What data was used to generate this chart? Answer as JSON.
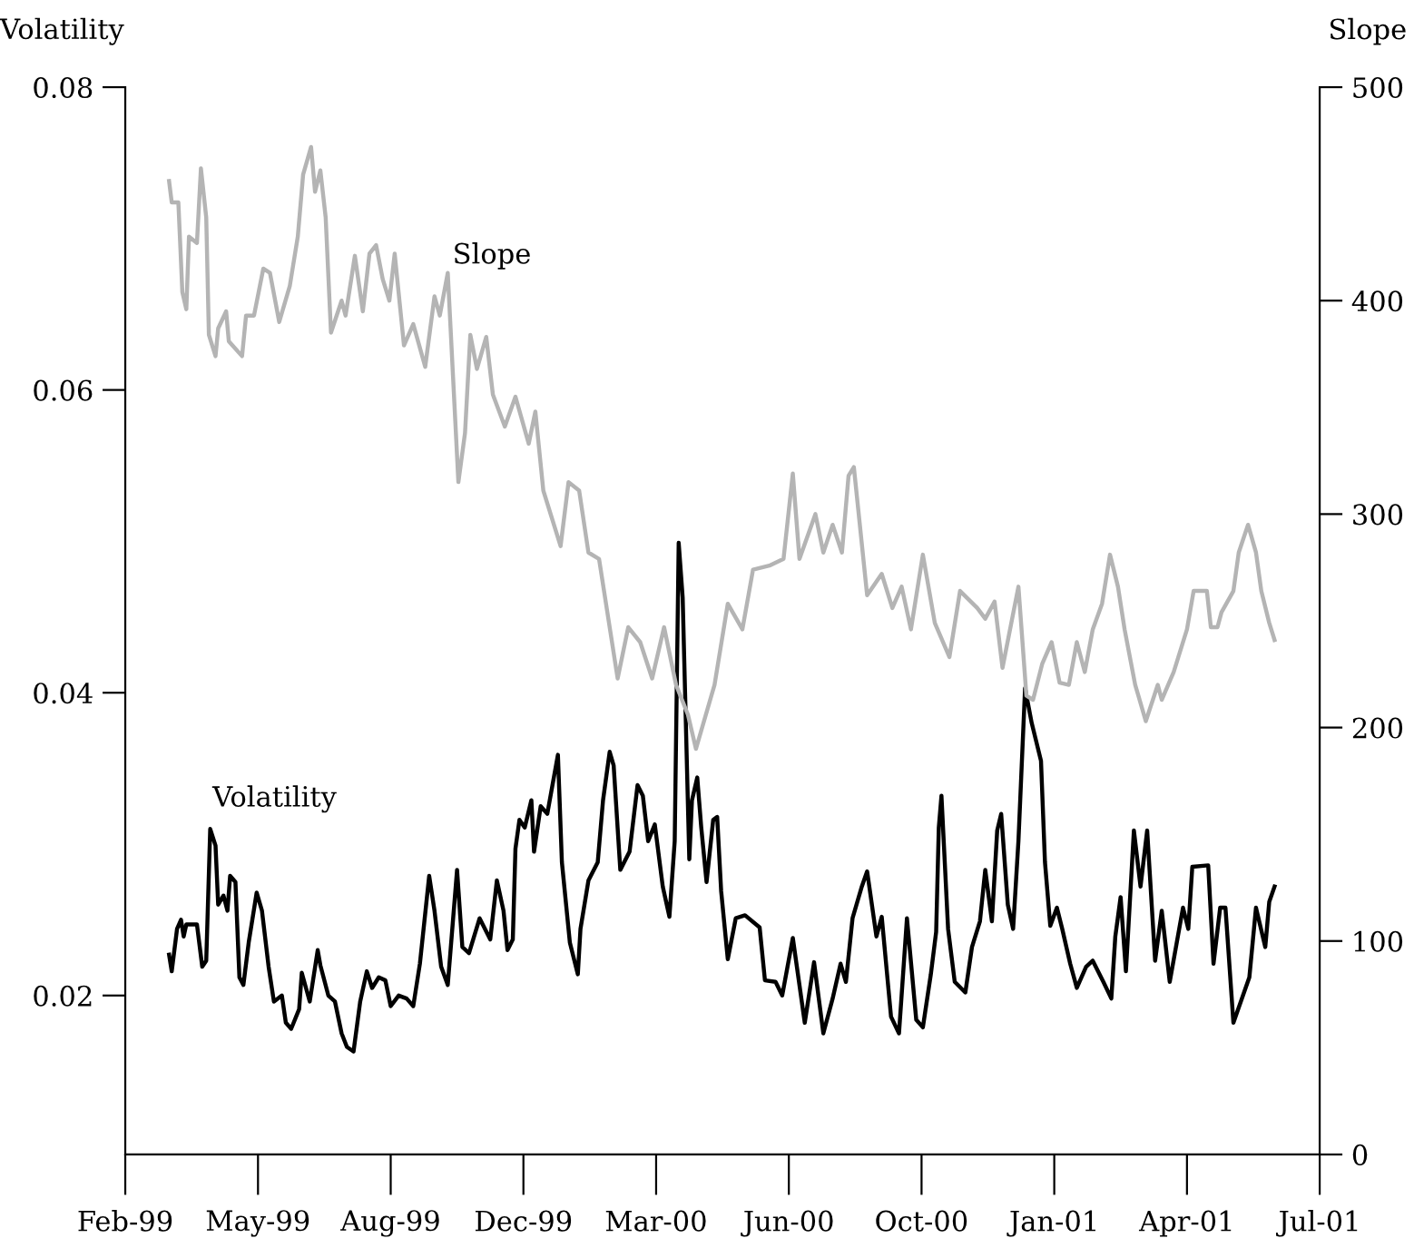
{
  "chart_data": {
    "type": "line",
    "ylabel": "Volatility",
    "y2label": "Slope",
    "xlim": [
      "1999-02-10",
      "2001-07-29"
    ],
    "xticks": [
      {
        "value": "1999-02-10",
        "label": "Feb-99"
      },
      {
        "value": "1999-05-21",
        "label": "May-99"
      },
      {
        "value": "1999-08-29",
        "label": "Aug-99"
      },
      {
        "value": "1999-12-07",
        "label": "Dec-99"
      },
      {
        "value": "2000-03-16",
        "label": "Mar-00"
      },
      {
        "value": "2000-06-24",
        "label": "Jun-00"
      },
      {
        "value": "2000-10-02",
        "label": "Oct-00"
      },
      {
        "value": "2001-01-10",
        "label": "Jan-01"
      },
      {
        "value": "2001-04-20",
        "label": "Apr-01"
      },
      {
        "value": "2001-07-29",
        "label": "Jul-01"
      }
    ],
    "ylim": [
      0.0095,
      0.08
    ],
    "yticks": [
      0.02,
      0.04,
      0.06,
      0.08
    ],
    "y2lim": [
      0,
      500
    ],
    "y2ticks": [
      0,
      100,
      200,
      300,
      400,
      500
    ],
    "legend": false,
    "grid": false,
    "series": [
      {
        "name": "Volatility",
        "color": "#000000",
        "axis": "y",
        "x": [
          "1999-03-15",
          "1999-03-17",
          "1999-03-21",
          "1999-03-24",
          "1999-03-26",
          "1999-03-28",
          "1999-04-05",
          "1999-04-09",
          "1999-04-12",
          "1999-04-15",
          "1999-04-19",
          "1999-04-21",
          "1999-04-25",
          "1999-04-28",
          "1999-04-30",
          "1999-05-04",
          "1999-05-07",
          "1999-05-10",
          "1999-05-14",
          "1999-05-20",
          "1999-05-24",
          "1999-05-29",
          "1999-06-02",
          "1999-06-08",
          "1999-06-11",
          "1999-06-15",
          "1999-06-21",
          "1999-06-23",
          "1999-06-29",
          "1999-07-05",
          "1999-07-07",
          "1999-07-13",
          "1999-07-18",
          "1999-07-23",
          "1999-07-27",
          "1999-08-01",
          "1999-08-06",
          "1999-08-11",
          "1999-08-15",
          "1999-08-20",
          "1999-08-25",
          "1999-08-29",
          "1999-09-04",
          "1999-09-10",
          "1999-09-15",
          "1999-09-20",
          "1999-09-27",
          "1999-10-01",
          "1999-10-06",
          "1999-10-11",
          "1999-10-18",
          "1999-10-22",
          "1999-10-27",
          "1999-11-04",
          "1999-11-12",
          "1999-11-17",
          "1999-11-22",
          "1999-11-25",
          "1999-11-29",
          "1999-12-01",
          "1999-12-04",
          "1999-12-08",
          "1999-12-13",
          "1999-12-15",
          "1999-12-20",
          "1999-12-25",
          "2000-01-02",
          "2000-01-05",
          "2000-01-11",
          "2000-01-17",
          "2000-01-19",
          "2000-01-25",
          "2000-02-01",
          "2000-02-05",
          "2000-02-10",
          "2000-02-13",
          "2000-02-18",
          "2000-02-25",
          "2000-03-02",
          "2000-03-06",
          "2000-03-10",
          "2000-03-15",
          "2000-03-21",
          "2000-03-26",
          "2000-03-30",
          "2000-04-02",
          "2000-04-05",
          "2000-04-10",
          "2000-04-12",
          "2000-04-16",
          "2000-04-19",
          "2000-04-23",
          "2000-04-28",
          "2000-05-01",
          "2000-05-04",
          "2000-05-09",
          "2000-05-15",
          "2000-05-22",
          "2000-06-02",
          "2000-06-06",
          "2000-06-14",
          "2000-06-19",
          "2000-06-27",
          "2000-07-06",
          "2000-07-13",
          "2000-07-20",
          "2000-07-27",
          "2000-08-02",
          "2000-08-06",
          "2000-08-11",
          "2000-08-18",
          "2000-08-22",
          "2000-08-29",
          "2000-09-02",
          "2000-09-09",
          "2000-09-15",
          "2000-09-21",
          "2000-09-28",
          "2000-10-03",
          "2000-10-09",
          "2000-10-13",
          "2000-10-15",
          "2000-10-17",
          "2000-10-22",
          "2000-10-27",
          "2000-11-04",
          "2000-11-09",
          "2000-11-15",
          "2000-11-19",
          "2000-11-24",
          "2000-11-28",
          "2000-12-01",
          "2000-12-06",
          "2000-12-10",
          "2000-12-14",
          "2000-12-19",
          "2000-12-24",
          "2000-12-31",
          "2001-01-03",
          "2001-01-07",
          "2001-01-12",
          "2001-01-16",
          "2001-01-22",
          "2001-01-27",
          "2001-02-03",
          "2001-02-08",
          "2001-02-16",
          "2001-02-22",
          "2001-02-25",
          "2001-03-01",
          "2001-03-05",
          "2001-03-11",
          "2001-03-16",
          "2001-03-21",
          "2001-03-27",
          "2001-04-01",
          "2001-04-07",
          "2001-04-17",
          "2001-04-21",
          "2001-04-24",
          "2001-05-06",
          "2001-05-10",
          "2001-05-15",
          "2001-05-19",
          "2001-05-25",
          "2001-06-06",
          "2001-06-11",
          "2001-06-18",
          "2001-06-21",
          "2001-06-25"
        ],
        "values": [
          0.0227,
          0.0216,
          0.0244,
          0.025,
          0.0239,
          0.0247,
          0.0247,
          0.0219,
          0.0223,
          0.031,
          0.0299,
          0.026,
          0.0266,
          0.0256,
          0.0279,
          0.0275,
          0.0212,
          0.0207,
          0.0235,
          0.0268,
          0.0256,
          0.0219,
          0.0196,
          0.02,
          0.0182,
          0.0178,
          0.0191,
          0.0215,
          0.0196,
          0.023,
          0.022,
          0.02,
          0.0196,
          0.0175,
          0.0166,
          0.0163,
          0.0196,
          0.0216,
          0.0205,
          0.0212,
          0.021,
          0.0193,
          0.02,
          0.0198,
          0.0193,
          0.0221,
          0.0279,
          0.0256,
          0.0219,
          0.0207,
          0.0283,
          0.0232,
          0.0228,
          0.0251,
          0.0237,
          0.0276,
          0.0256,
          0.023,
          0.0237,
          0.0297,
          0.0316,
          0.0311,
          0.0329,
          0.0295,
          0.0325,
          0.032,
          0.0359,
          0.0288,
          0.0235,
          0.0214,
          0.0244,
          0.0276,
          0.0288,
          0.0329,
          0.0361,
          0.0352,
          0.0283,
          0.0295,
          0.0339,
          0.0332,
          0.0302,
          0.0313,
          0.0272,
          0.0252,
          0.0302,
          0.0499,
          0.0463,
          0.029,
          0.0329,
          0.0344,
          0.0311,
          0.0275,
          0.0316,
          0.0318,
          0.0269,
          0.0224,
          0.0251,
          0.0253,
          0.0245,
          0.021,
          0.0209,
          0.02,
          0.0238,
          0.0182,
          0.0222,
          0.0175,
          0.0198,
          0.0221,
          0.0209,
          0.0251,
          0.0272,
          0.0282,
          0.0239,
          0.0252,
          0.0186,
          0.0175,
          0.0251,
          0.0184,
          0.0179,
          0.0214,
          0.0242,
          0.0311,
          0.0332,
          0.0244,
          0.0209,
          0.0202,
          0.0232,
          0.0249,
          0.0283,
          0.0249,
          0.0309,
          0.032,
          0.026,
          0.0244,
          0.0302,
          0.0403,
          0.038,
          0.0355,
          0.0288,
          0.0246,
          0.0258,
          0.0244,
          0.0221,
          0.0205,
          0.0219,
          0.0223,
          0.0209,
          0.0198,
          0.0239,
          0.0265,
          0.0216,
          0.0309,
          0.0272,
          0.0309,
          0.0223,
          0.0256,
          0.0209,
          0.0258,
          0.0244,
          0.0285,
          0.0286,
          0.0221,
          0.0258,
          0.0258,
          0.0182,
          0.0212,
          0.0258,
          0.0232,
          0.0262,
          0.0272
        ]
      },
      {
        "name": "Slope",
        "color": "#b4b4b4",
        "axis": "y2",
        "x": [
          "1999-03-15",
          "1999-03-17",
          "1999-03-22",
          "1999-03-25",
          "1999-03-28",
          "1999-03-30",
          "1999-04-05",
          "1999-04-08",
          "1999-04-12",
          "1999-04-14",
          "1999-04-19",
          "1999-04-21",
          "1999-04-27",
          "1999-04-29",
          "1999-05-09",
          "1999-05-12",
          "1999-05-18",
          "1999-05-25",
          "1999-05-30",
          "1999-06-06",
          "1999-06-14",
          "1999-06-20",
          "1999-06-24",
          "1999-06-30",
          "1999-07-03",
          "1999-07-07",
          "1999-07-11",
          "1999-07-15",
          "1999-07-23",
          "1999-07-26",
          "1999-08-02",
          "1999-08-08",
          "1999-08-13",
          "1999-08-18",
          "1999-08-23",
          "1999-08-28",
          "1999-09-01",
          "1999-09-08",
          "1999-09-15",
          "1999-09-24",
          "1999-10-01",
          "1999-10-05",
          "1999-10-11",
          "1999-10-15",
          "1999-10-19",
          "1999-10-24",
          "1999-10-28",
          "1999-11-02",
          "1999-11-09",
          "1999-11-14",
          "1999-11-23",
          "1999-12-01",
          "1999-12-11",
          "1999-12-16",
          "1999-12-22",
          "2000-01-04",
          "2000-01-10",
          "2000-01-18",
          "2000-01-25",
          "2000-02-02",
          "2000-02-16",
          "2000-02-24",
          "2000-03-04",
          "2000-03-13",
          "2000-03-22",
          "2000-03-31",
          "2000-04-09",
          "2000-04-15",
          "2000-04-29",
          "2000-05-09",
          "2000-05-20",
          "2000-05-28",
          "2000-06-10",
          "2000-06-20",
          "2000-06-27",
          "2000-07-02",
          "2000-07-14",
          "2000-07-20",
          "2000-07-27",
          "2000-08-03",
          "2000-08-08",
          "2000-08-12",
          "2000-08-22",
          "2000-09-02",
          "2000-09-10",
          "2000-09-17",
          "2000-09-24",
          "2000-10-03",
          "2000-10-12",
          "2000-10-23",
          "2000-10-31",
          "2000-11-13",
          "2000-11-19",
          "2000-11-26",
          "2000-12-02",
          "2000-12-14",
          "2000-12-20",
          "2000-12-25",
          "2001-01-01",
          "2001-01-08",
          "2001-01-14",
          "2001-01-21",
          "2001-01-27",
          "2001-02-02",
          "2001-02-08",
          "2001-02-15",
          "2001-02-21",
          "2001-02-27",
          "2001-03-04",
          "2001-03-12",
          "2001-03-20",
          "2001-03-29",
          "2001-04-01",
          "2001-04-10",
          "2001-04-20",
          "2001-04-25",
          "2001-05-05",
          "2001-05-08",
          "2001-05-13",
          "2001-05-16",
          "2001-05-25",
          "2001-05-29",
          "2001-06-05",
          "2001-06-11",
          "2001-06-15",
          "2001-06-21",
          "2001-06-25"
        ],
        "values": [
          456,
          446,
          446,
          404,
          396,
          430,
          427,
          462,
          439,
          384,
          374,
          387,
          395,
          381,
          374,
          393,
          393,
          415,
          413,
          390,
          407,
          430,
          459,
          472,
          451,
          461,
          439,
          385,
          400,
          393,
          421,
          395,
          422,
          426,
          410,
          400,
          422,
          379,
          389,
          369,
          402,
          393,
          413,
          364,
          315,
          338,
          384,
          368,
          383,
          356,
          341,
          355,
          333,
          348,
          311,
          285,
          315,
          311,
          282,
          279,
          223,
          247,
          240,
          223,
          247,
          220,
          206,
          190,
          220,
          258,
          246,
          274,
          276,
          279,
          319,
          279,
          300,
          282,
          295,
          282,
          318,
          322,
          262,
          272,
          256,
          266,
          246,
          281,
          249,
          233,
          264,
          256,
          251,
          259,
          228,
          266,
          215,
          213,
          230,
          240,
          221,
          220,
          240,
          226,
          246,
          258,
          281,
          266,
          246,
          220,
          203,
          220,
          213,
          226,
          246,
          264,
          264,
          247,
          247,
          254,
          264,
          282,
          295,
          282,
          264,
          249,
          241
        ]
      }
    ]
  }
}
